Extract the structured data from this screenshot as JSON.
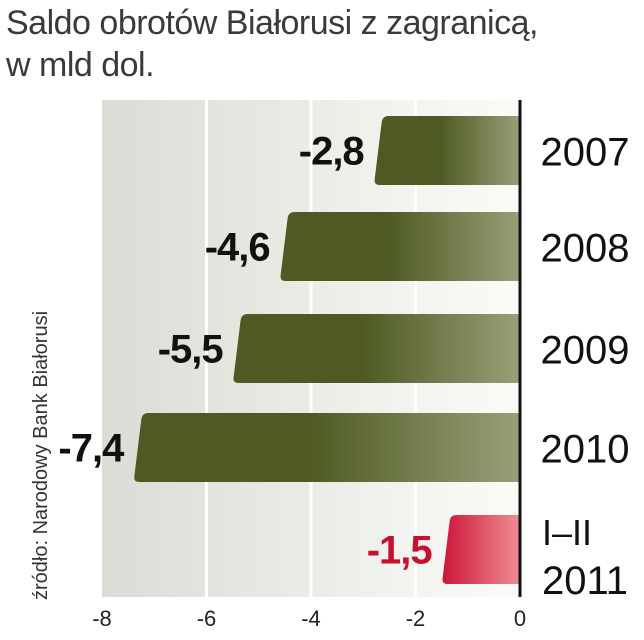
{
  "title_line1": "Saldo obrotów Białorusi z zagranicą,",
  "title_line2": "w mld dol.",
  "source": "źródło: Narodowy Bank Białorusi",
  "colors": {
    "bar_dark": "#4e5a22",
    "bar_light": "#98a079",
    "highlight_dark": "#cc1538",
    "highlight_light": "#ef8e94",
    "highlight_label": "#c8102e",
    "plot_bg_left": "#dcdcd6",
    "plot_bg_right": "#fbfbf8",
    "grid": "#ffffff",
    "axis": "#111111"
  },
  "chart_data": {
    "type": "bar",
    "orientation": "horizontal",
    "categories": [
      "2007",
      "2008",
      "2009",
      "2010",
      "I–II 2011"
    ],
    "category_lines": [
      [
        "2007"
      ],
      [
        "2008"
      ],
      [
        "2009"
      ],
      [
        "2010"
      ],
      [
        "I–II",
        "2011"
      ]
    ],
    "values": [
      -2.8,
      -4.6,
      -5.5,
      -7.4,
      -1.5
    ],
    "value_labels": [
      "-2,8",
      "-4,6",
      "-5,5",
      "-7,4",
      "-1,5"
    ],
    "highlight": [
      false,
      false,
      false,
      false,
      true
    ],
    "xlim": [
      -8,
      0
    ],
    "xticks": [
      -8,
      -6,
      -4,
      -2,
      0
    ],
    "xtick_labels": [
      "-8",
      "-6",
      "-4",
      "-2",
      "0"
    ],
    "grid": true
  }
}
